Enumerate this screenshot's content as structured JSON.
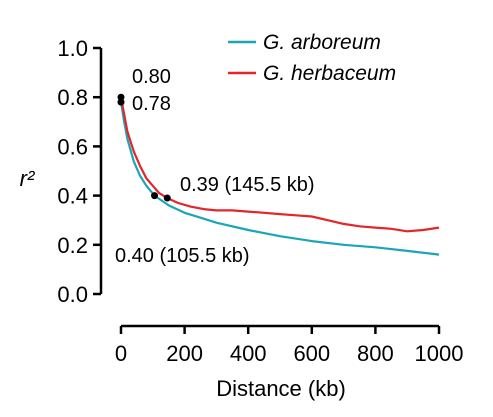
{
  "chart_data": {
    "type": "line",
    "title": "",
    "xlabel": "Distance (kb)",
    "ylabel": "r²",
    "xlim": [
      0,
      1000
    ],
    "ylim": [
      0.0,
      1.0
    ],
    "xticks": [
      "0",
      "200",
      "400",
      "600",
      "800",
      "1000"
    ],
    "yticks": [
      "0.0",
      "0.2",
      "0.4",
      "0.6",
      "0.8",
      "1.0"
    ],
    "grid": false,
    "legend_position": "top-right",
    "series": [
      {
        "name": "G. arboreum",
        "color": "#1aa6b7",
        "x": [
          0,
          10,
          20,
          40,
          60,
          80,
          105.5,
          150,
          200,
          250,
          300,
          400,
          500,
          600,
          700,
          800,
          900,
          1000
        ],
        "y": [
          0.78,
          0.7,
          0.63,
          0.54,
          0.48,
          0.44,
          0.4,
          0.36,
          0.33,
          0.31,
          0.29,
          0.26,
          0.235,
          0.215,
          0.2,
          0.19,
          0.175,
          0.16
        ]
      },
      {
        "name": "G. herbaceum",
        "color": "#e3262a",
        "x": [
          0,
          10,
          20,
          40,
          60,
          80,
          100,
          120,
          145.5,
          180,
          220,
          260,
          300,
          350,
          400,
          450,
          500,
          550,
          600,
          650,
          700,
          750,
          800,
          850,
          900,
          950,
          1000
        ],
        "y": [
          0.8,
          0.73,
          0.66,
          0.58,
          0.52,
          0.47,
          0.44,
          0.41,
          0.39,
          0.37,
          0.355,
          0.345,
          0.34,
          0.34,
          0.335,
          0.33,
          0.325,
          0.32,
          0.315,
          0.3,
          0.285,
          0.275,
          0.27,
          0.265,
          0.255,
          0.26,
          0.27
        ]
      }
    ],
    "points": [
      {
        "x": 0,
        "y": 0.8
      },
      {
        "x": 0,
        "y": 0.78
      },
      {
        "x": 105.5,
        "y": 0.4
      },
      {
        "x": 145.5,
        "y": 0.39
      }
    ],
    "annotations": {
      "start_herbaceum": "0.80",
      "start_arboreum": "0.78",
      "half_herbaceum": "0.39 (145.5 kb)",
      "half_arboreum": "0.40 (105.5 kb)"
    }
  }
}
